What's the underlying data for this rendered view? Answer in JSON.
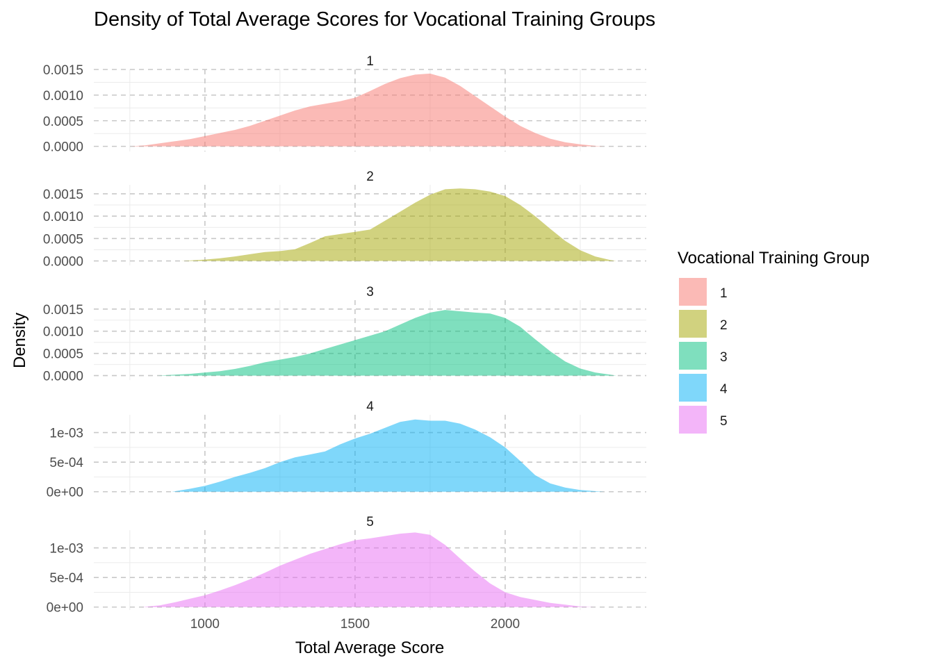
{
  "chart_data": {
    "type": "area",
    "title": "Density of Total Average Scores for Vocational Training Groups",
    "xlabel": "Total Average Score",
    "ylabel": "Density",
    "xlim": [
      630,
      2470
    ],
    "x_ticks": [
      1000,
      1500,
      2000
    ],
    "x_tick_labels": [
      "1000",
      "1500",
      "2000"
    ],
    "legend_title": "Vocational Training Group",
    "legend_position": "right",
    "series": [
      {
        "name": "1",
        "color": "#F8766D",
        "ylim": [
          -0.0001,
          0.0015
        ],
        "y_ticks": [
          0,
          0.0005,
          0.001,
          0.0015
        ],
        "y_tick_labels": [
          "0.0000",
          "0.0005",
          "0.0010",
          "0.0015"
        ],
        "x": [
          750,
          800,
          850,
          900,
          950,
          1000,
          1050,
          1100,
          1150,
          1200,
          1250,
          1300,
          1350,
          1400,
          1450,
          1500,
          1550,
          1600,
          1650,
          1700,
          1750,
          1800,
          1850,
          1900,
          1950,
          2000,
          2050,
          2100,
          2150,
          2200,
          2250,
          2300,
          2330
        ],
        "y": [
          0,
          2e-05,
          6e-05,
          0.0001,
          0.00014,
          0.0002,
          0.00026,
          0.00032,
          0.0004,
          0.0005,
          0.0006,
          0.0007,
          0.00078,
          0.00083,
          0.00088,
          0.00095,
          0.00108,
          0.00122,
          0.00133,
          0.0014,
          0.00142,
          0.00134,
          0.00118,
          0.00098,
          0.00078,
          0.00058,
          0.0004,
          0.00026,
          0.00015,
          8e-05,
          4e-05,
          1e-05,
          0
        ]
      },
      {
        "name": "2",
        "color": "#A3A500",
        "ylim": [
          -0.0001,
          0.0017
        ],
        "y_ticks": [
          0,
          0.0005,
          0.001,
          0.0015
        ],
        "y_tick_labels": [
          "0.0000",
          "0.0005",
          "0.0010",
          "0.0015"
        ],
        "x": [
          920,
          950,
          1000,
          1050,
          1100,
          1150,
          1200,
          1250,
          1300,
          1350,
          1400,
          1450,
          1500,
          1550,
          1600,
          1650,
          1700,
          1750,
          1800,
          1850,
          1900,
          1950,
          2000,
          2050,
          2100,
          2150,
          2200,
          2250,
          2300,
          2350,
          2370
        ],
        "y": [
          0,
          1e-05,
          3e-05,
          6e-05,
          0.0001,
          0.00015,
          0.0002,
          0.00022,
          0.00026,
          0.0004,
          0.00055,
          0.0006,
          0.00065,
          0.0007,
          0.0009,
          0.0011,
          0.0013,
          0.00148,
          0.0016,
          0.00162,
          0.0016,
          0.00155,
          0.00145,
          0.00125,
          0.001,
          0.00072,
          0.00045,
          0.00024,
          0.0001,
          2e-05,
          0
        ]
      },
      {
        "name": "3",
        "color": "#00BF7D",
        "ylim": [
          -0.0001,
          0.0017
        ],
        "y_ticks": [
          0,
          0.0005,
          0.001,
          0.0015
        ],
        "y_tick_labels": [
          "0.0000",
          "0.0005",
          "0.0010",
          "0.0015"
        ],
        "x": [
          840,
          900,
          950,
          1000,
          1050,
          1100,
          1150,
          1200,
          1250,
          1300,
          1350,
          1400,
          1450,
          1500,
          1550,
          1600,
          1650,
          1700,
          1750,
          1800,
          1850,
          1900,
          1950,
          2000,
          2050,
          2100,
          2150,
          2200,
          2250,
          2300,
          2350,
          2370
        ],
        "y": [
          0,
          2e-05,
          4e-05,
          7e-05,
          0.0001,
          0.00015,
          0.00022,
          0.0003,
          0.00036,
          0.00042,
          0.0005,
          0.0006,
          0.0007,
          0.0008,
          0.0009,
          0.001,
          0.00115,
          0.0013,
          0.00142,
          0.00148,
          0.00145,
          0.00142,
          0.0014,
          0.0013,
          0.0011,
          0.00082,
          0.00055,
          0.00032,
          0.00016,
          7e-05,
          2e-05,
          0
        ]
      },
      {
        "name": "4",
        "color": "#00B0F6",
        "ylim": [
          -5e-05,
          0.0013
        ],
        "y_ticks": [
          0,
          0.0005,
          0.001
        ],
        "y_tick_labels": [
          "0e+00",
          "5e-04",
          "1e-03"
        ],
        "x": [
          890,
          950,
          1000,
          1050,
          1100,
          1150,
          1200,
          1250,
          1300,
          1350,
          1400,
          1450,
          1500,
          1550,
          1600,
          1650,
          1700,
          1750,
          1800,
          1850,
          1900,
          1950,
          2000,
          2050,
          2100,
          2150,
          2200,
          2250,
          2300,
          2330
        ],
        "y": [
          0,
          5e-05,
          0.0001,
          0.00017,
          0.00025,
          0.00032,
          0.0004,
          0.0005,
          0.00058,
          0.00063,
          0.00068,
          0.0008,
          0.0009,
          0.00098,
          0.00108,
          0.00118,
          0.00122,
          0.0012,
          0.0012,
          0.00115,
          0.00105,
          0.00092,
          0.00075,
          0.00052,
          0.00028,
          0.00014,
          7e-05,
          3e-05,
          1e-05,
          0
        ]
      },
      {
        "name": "5",
        "color": "#E76BF3",
        "ylim": [
          -5e-05,
          0.0013
        ],
        "y_ticks": [
          0,
          0.0005,
          0.001
        ],
        "y_tick_labels": [
          "0e+00",
          "5e-04",
          "1e-03"
        ],
        "x": [
          790,
          850,
          900,
          950,
          1000,
          1050,
          1100,
          1150,
          1200,
          1250,
          1300,
          1350,
          1400,
          1450,
          1500,
          1550,
          1600,
          1650,
          1700,
          1750,
          1800,
          1850,
          1900,
          1950,
          2000,
          2050,
          2100,
          2150,
          2200,
          2250,
          2300
        ],
        "y": [
          0,
          3e-05,
          8e-05,
          0.00014,
          0.0002,
          0.00028,
          0.00037,
          0.00047,
          0.00058,
          0.0007,
          0.0008,
          0.0009,
          0.00098,
          0.00106,
          0.00113,
          0.00116,
          0.0012,
          0.00124,
          0.00126,
          0.00122,
          0.00105,
          0.00082,
          0.0006,
          0.0004,
          0.00025,
          0.00017,
          0.00012,
          7e-05,
          4e-05,
          1e-05,
          0
        ]
      }
    ]
  }
}
